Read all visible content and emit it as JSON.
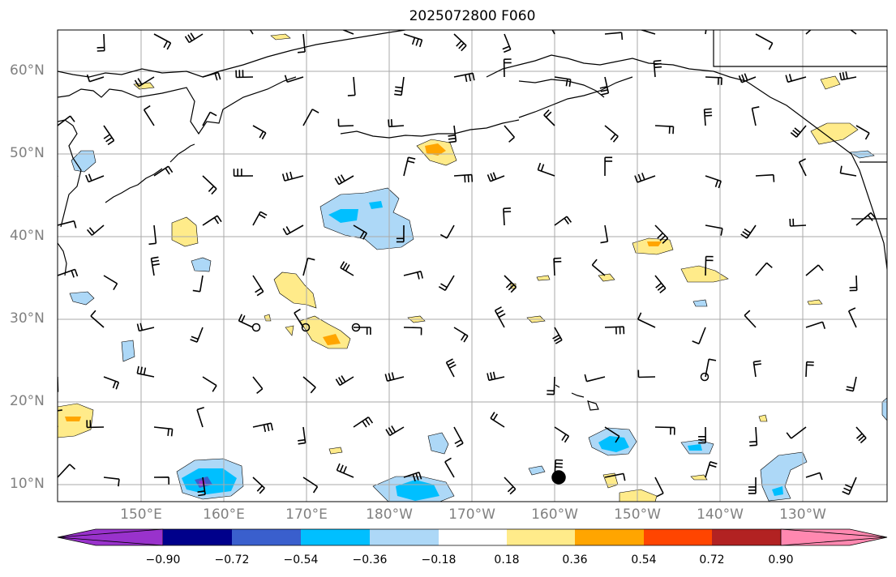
{
  "title": "2025072800 F060",
  "lat_labels": [
    "60°N",
    "50°N",
    "40°N",
    "30°N",
    "20°N",
    "10°N"
  ],
  "lon_labels": [
    "150°E",
    "160°E",
    "170°E",
    "180°W",
    "170°W",
    "160°W",
    "150°W",
    "140°W",
    "130°W"
  ],
  "colorbar": {
    "ticks": [
      "−0.90",
      "−0.72",
      "−0.54",
      "−0.36",
      "−0.18",
      "0.18",
      "0.36",
      "0.54",
      "0.72",
      "0.90"
    ],
    "colors": [
      "#9932CC",
      "#00008B",
      "#3A5FCD",
      "#00BFFF",
      "#ADD8F7",
      "#FFFFFF",
      "#FFEB8A",
      "#FFA500",
      "#FF4500",
      "#B22222",
      "#FF88B0"
    ]
  },
  "fill_colors": {
    "light_blue": "#ADD8F7",
    "blue": "#00BFFF",
    "mid_blue": "#3A5FCD",
    "purple": "#9932CC",
    "light_yellow": "#FFEB8A",
    "orange": "#FFA500"
  }
}
